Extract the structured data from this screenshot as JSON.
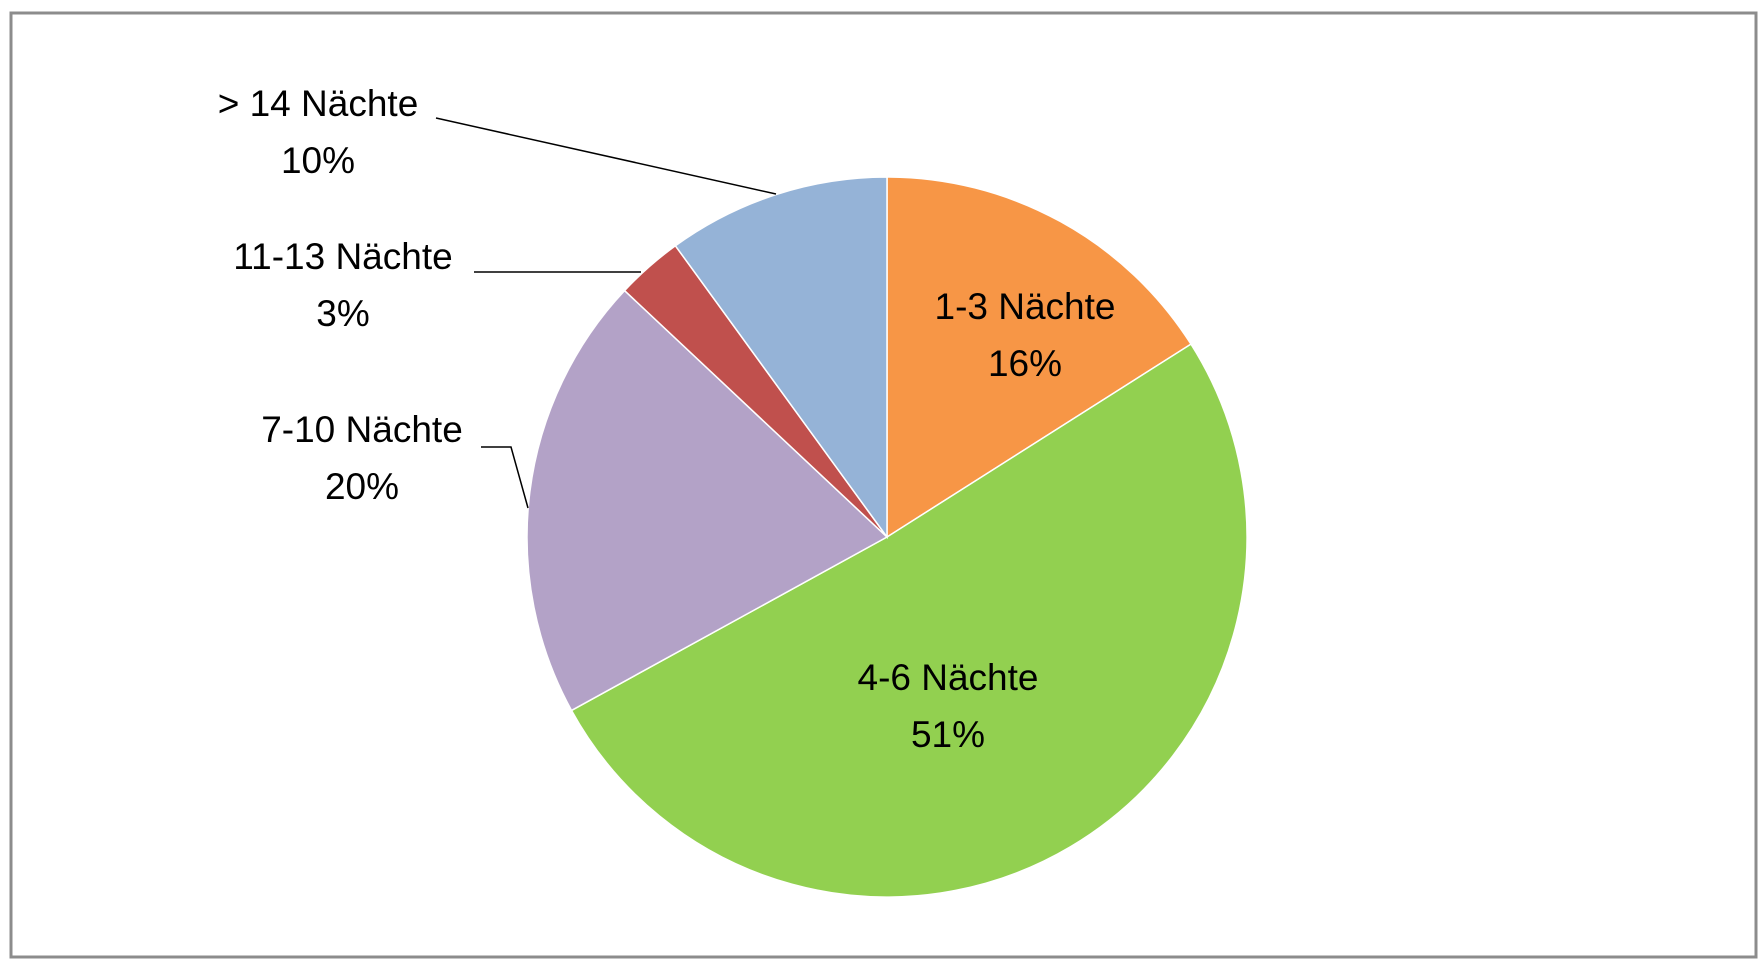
{
  "chart_data": {
    "type": "pie",
    "categories": [
      "1-3 Nächte",
      "4-6 Nächte",
      "7-10 Nächte",
      "11-13 Nächte",
      "> 14 Nächte"
    ],
    "values": [
      16,
      51,
      20,
      3,
      10
    ],
    "value_labels": [
      "16%",
      "51%",
      "20%",
      "3%",
      "10%"
    ],
    "colors": [
      "#f79646",
      "#92d050",
      "#b3a2c7",
      "#c0504d",
      "#95b3d7"
    ]
  }
}
